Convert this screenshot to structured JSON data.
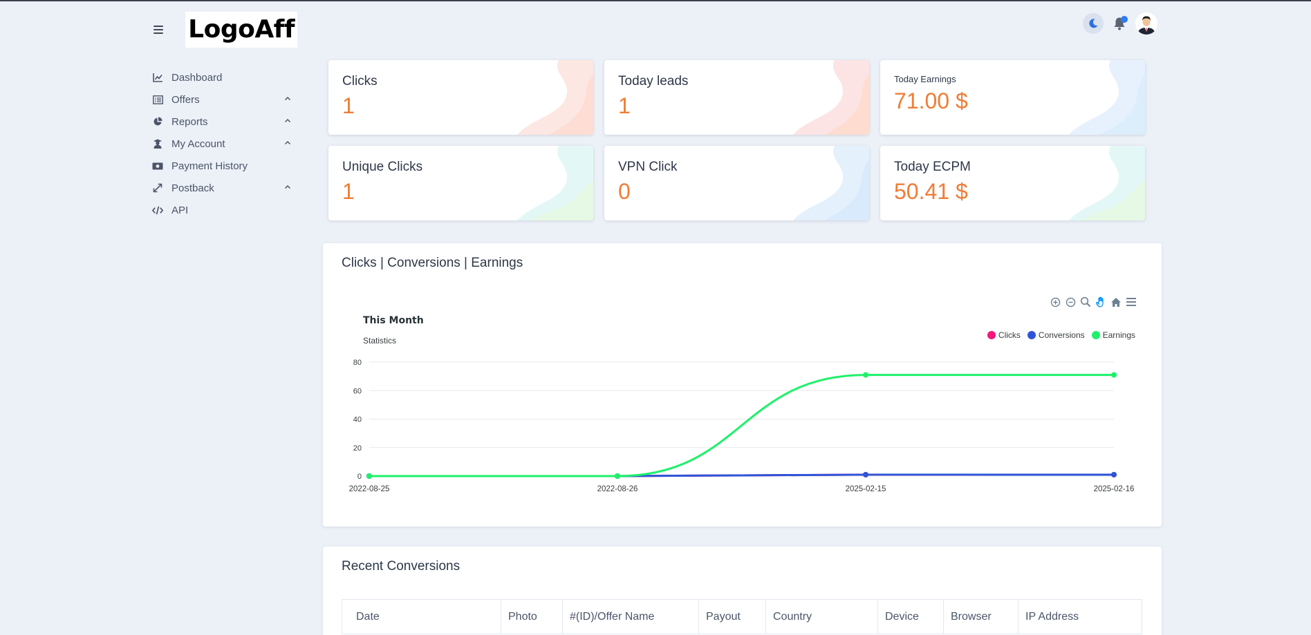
{
  "brand": {
    "logo_text": "LogoAff"
  },
  "sidebar": {
    "items": [
      {
        "label": "Dashboard",
        "icon": "chart-line-icon",
        "expandable": false
      },
      {
        "label": "Offers",
        "icon": "list-icon",
        "expandable": true
      },
      {
        "label": "Reports",
        "icon": "pie-chart-icon",
        "expandable": true
      },
      {
        "label": "My Account",
        "icon": "user-graduate-icon",
        "expandable": true
      },
      {
        "label": "Payment History",
        "icon": "money-bill-icon",
        "expandable": false
      },
      {
        "label": "Postback",
        "icon": "expand-arrows-icon",
        "expandable": true
      },
      {
        "label": "API",
        "icon": "code-icon",
        "expandable": false
      }
    ]
  },
  "topbar": {
    "theme_icon": "moon-icon",
    "notification_icon": "bell-icon",
    "avatar": "user-avatar"
  },
  "stats": [
    {
      "title": "Clicks",
      "value": "1"
    },
    {
      "title": "Today leads",
      "value": "1"
    },
    {
      "title": "Today Earnings",
      "value": "71.00 $"
    },
    {
      "title": "Unique Clicks",
      "value": "1"
    },
    {
      "title": "VPN Click",
      "value": "0"
    },
    {
      "title": "Today ECPM",
      "value": "50.41 $"
    }
  ],
  "chart_panel": {
    "title": "Clicks | Conversions | Earnings",
    "toolbar": [
      "zoom-in-icon",
      "zoom-out-icon",
      "zoom-select-icon",
      "pan-hand-icon",
      "reset-home-icon",
      "menu-icon"
    ]
  },
  "chart_data": {
    "type": "line",
    "title": "This Month",
    "subtitle": "Statistics",
    "categories": [
      "2022-08-25",
      "2022-08-26",
      "2025-02-15",
      "2025-02-16"
    ],
    "series": [
      {
        "name": "Clicks",
        "color": "#f5157a",
        "values": [
          0,
          0,
          1,
          1
        ]
      },
      {
        "name": "Conversions",
        "color": "#2e55d9",
        "values": [
          0,
          0,
          1,
          1
        ]
      },
      {
        "name": "Earnings",
        "color": "#1ef16a",
        "values": [
          0,
          0,
          71,
          71
        ]
      }
    ],
    "ylim": [
      0,
      80
    ],
    "yticks": [
      0,
      20,
      40,
      60,
      80
    ],
    "grid": true,
    "legend_position": "top-right"
  },
  "recent": {
    "title": "Recent Conversions",
    "columns": [
      "Date",
      "Photo",
      "#(ID)/Offer Name",
      "Payout",
      "Country",
      "Device",
      "Browser",
      "IP Address"
    ]
  }
}
